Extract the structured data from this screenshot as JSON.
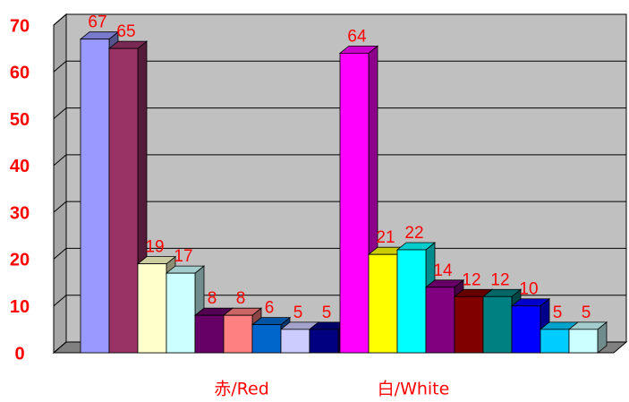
{
  "chart_data": {
    "type": "bar3d",
    "groups": [
      {
        "name": "赤/Red",
        "values": [
          67,
          65,
          19,
          17,
          8,
          8,
          6,
          5,
          5
        ],
        "colors": [
          "#9999ff",
          "#993366",
          "#ffffcc",
          "#ccffff",
          "#660066",
          "#ff8080",
          "#0066cc",
          "#ccccff",
          "#000080"
        ]
      },
      {
        "name": "白/White",
        "values": [
          64,
          21,
          22,
          14,
          12,
          12,
          10,
          5,
          5
        ],
        "colors": [
          "#ff00ff",
          "#ffff00",
          "#00ffff",
          "#800080",
          "#800000",
          "#008080",
          "#0000ff",
          "#00ccff",
          "#ccffff"
        ]
      }
    ],
    "ylim": [
      0,
      70
    ],
    "yticks": [
      0,
      10,
      20,
      30,
      40,
      50,
      60,
      70
    ],
    "grid": true
  }
}
